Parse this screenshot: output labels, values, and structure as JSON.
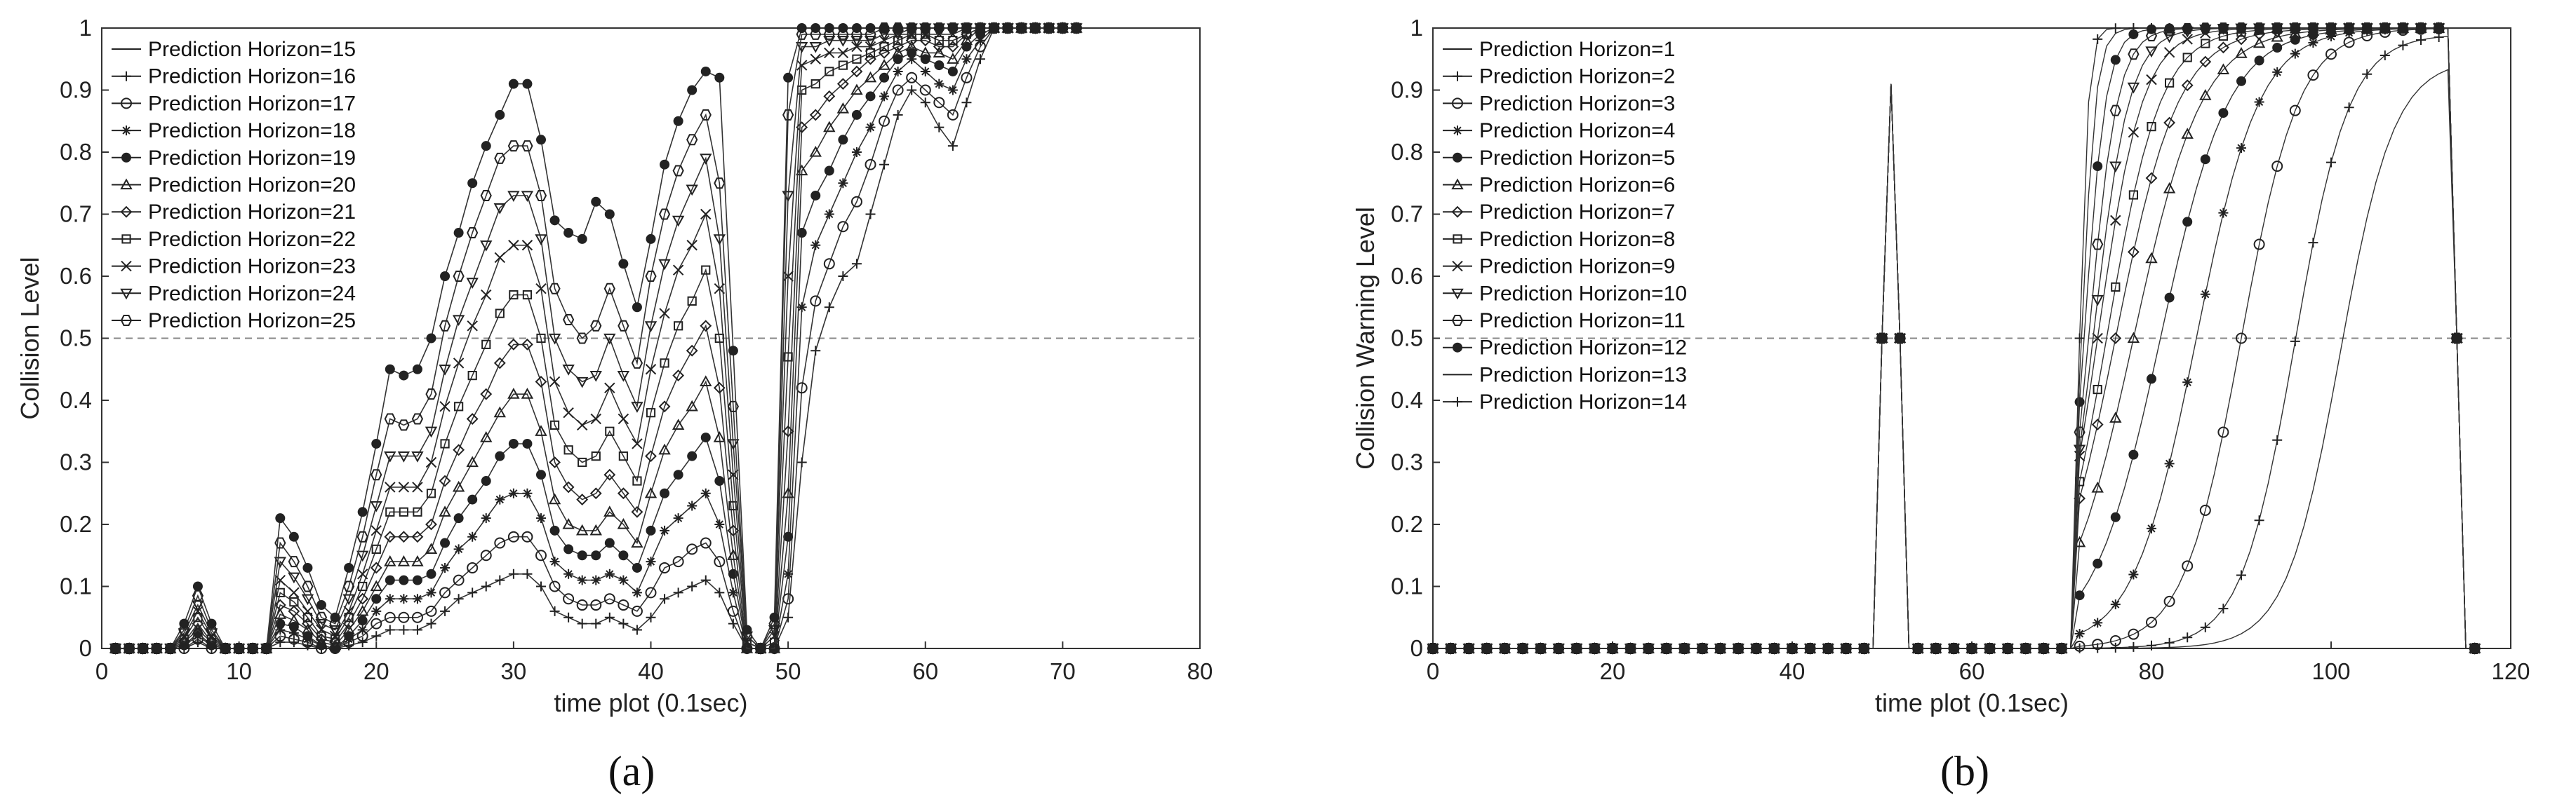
{
  "chart_data": [
    {
      "type": "line",
      "panel_label": "(a)",
      "xlabel": "time plot (0.1sec)",
      "ylabel": "Collision Level",
      "xlim": [
        0,
        80
      ],
      "ylim": [
        0,
        1
      ],
      "xticks": [
        "0",
        "10",
        "20",
        "30",
        "40",
        "50",
        "60",
        "70",
        "80"
      ],
      "yticks": [
        "0",
        "0.1",
        "0.2",
        "0.3",
        "0.4",
        "0.5",
        "0.6",
        "0.7",
        "0.8",
        "0.9",
        "1"
      ],
      "threshold": 0.5,
      "legend_position": "top-left",
      "x": [
        1,
        2,
        3,
        4,
        5,
        6,
        7,
        8,
        9,
        10,
        11,
        12,
        13,
        14,
        15,
        16,
        17,
        18,
        19,
        20,
        21,
        22,
        23,
        24,
        25,
        26,
        27,
        28,
        29,
        30,
        31,
        32,
        33,
        34,
        35,
        36,
        37,
        38,
        39,
        40,
        41,
        42,
        43,
        44,
        45,
        46,
        47,
        48,
        49,
        50,
        51,
        52,
        53,
        54,
        55,
        56,
        57,
        58,
        59,
        60,
        61,
        62,
        63,
        64,
        65,
        66,
        67,
        68,
        69,
        70,
        71
      ],
      "series": [
        {
          "name": "Prediction Horizon=15",
          "values": [
            0,
            0,
            0,
            0,
            0,
            0,
            0.01,
            0,
            0,
            0,
            0,
            0,
            0.01,
            0.01,
            0.005,
            0,
            0,
            0.005,
            0.01,
            0.02,
            0.03,
            0.03,
            0.03,
            0.04,
            0.06,
            0.08,
            0.09,
            0.1,
            0.11,
            0.12,
            0.12,
            0.1,
            0.06,
            0.05,
            0.04,
            0.04,
            0.05,
            0.04,
            0.03,
            0.05,
            0.08,
            0.09,
            0.1,
            0.11,
            0.09,
            0.04,
            0,
            0,
            0,
            0.05,
            0.3,
            0.48,
            0.55,
            0.6,
            0.62,
            0.7,
            0.78,
            0.86,
            0.9,
            0.88,
            0.84,
            0.81,
            0.88,
            0.95,
            1,
            1,
            1,
            1,
            1,
            1,
            1
          ]
        },
        {
          "name": "Prediction Horizon=16",
          "values": [
            0,
            0,
            0,
            0,
            0,
            0,
            0.015,
            0,
            0,
            0,
            0,
            0,
            0.02,
            0.015,
            0.01,
            0,
            0,
            0.01,
            0.02,
            0.04,
            0.05,
            0.05,
            0.05,
            0.06,
            0.09,
            0.11,
            0.13,
            0.15,
            0.17,
            0.18,
            0.18,
            0.15,
            0.1,
            0.08,
            0.07,
            0.07,
            0.08,
            0.07,
            0.06,
            0.09,
            0.13,
            0.14,
            0.16,
            0.17,
            0.14,
            0.06,
            0,
            0,
            0,
            0.08,
            0.42,
            0.56,
            0.62,
            0.68,
            0.72,
            0.78,
            0.85,
            0.9,
            0.92,
            0.9,
            0.88,
            0.86,
            0.92,
            0.97,
            1,
            1,
            1,
            1,
            1,
            1,
            1
          ]
        },
        {
          "name": "Prediction Horizon=17",
          "values": [
            0,
            0,
            0,
            0,
            0,
            0.005,
            0.02,
            0.005,
            0,
            0,
            0,
            0,
            0.03,
            0.025,
            0.015,
            0.005,
            0,
            0.015,
            0.03,
            0.06,
            0.08,
            0.08,
            0.08,
            0.09,
            0.13,
            0.16,
            0.18,
            0.21,
            0.24,
            0.25,
            0.25,
            0.21,
            0.14,
            0.12,
            0.11,
            0.11,
            0.12,
            0.11,
            0.09,
            0.14,
            0.19,
            0.21,
            0.23,
            0.25,
            0.2,
            0.09,
            0,
            0,
            0,
            0.12,
            0.55,
            0.65,
            0.7,
            0.75,
            0.8,
            0.84,
            0.89,
            0.93,
            0.95,
            0.93,
            0.91,
            0.9,
            0.95,
            0.98,
            1,
            1,
            1,
            1,
            1,
            1,
            1
          ]
        },
        {
          "name": "Prediction Horizon=18",
          "values": [
            0,
            0,
            0,
            0,
            0,
            0.005,
            0.025,
            0.005,
            0,
            0,
            0,
            0,
            0.04,
            0.035,
            0.02,
            0.005,
            0,
            0.02,
            0.045,
            0.08,
            0.11,
            0.11,
            0.11,
            0.12,
            0.17,
            0.21,
            0.24,
            0.27,
            0.31,
            0.33,
            0.33,
            0.28,
            0.19,
            0.16,
            0.15,
            0.15,
            0.17,
            0.15,
            0.13,
            0.19,
            0.25,
            0.28,
            0.31,
            0.34,
            0.27,
            0.12,
            0,
            0,
            0,
            0.18,
            0.67,
            0.73,
            0.77,
            0.82,
            0.86,
            0.89,
            0.92,
            0.95,
            0.96,
            0.95,
            0.94,
            0.93,
            0.97,
            0.99,
            1,
            1,
            1,
            1,
            1,
            1,
            1
          ]
        },
        {
          "name": "Prediction Horizon=19",
          "values": [
            0,
            0,
            0,
            0,
            0,
            0.01,
            0.03,
            0.01,
            0,
            0,
            0,
            0,
            0.055,
            0.045,
            0.03,
            0.01,
            0.005,
            0.03,
            0.06,
            0.1,
            0.14,
            0.14,
            0.14,
            0.16,
            0.22,
            0.26,
            0.3,
            0.34,
            0.38,
            0.41,
            0.41,
            0.35,
            0.24,
            0.2,
            0.19,
            0.19,
            0.22,
            0.2,
            0.17,
            0.25,
            0.32,
            0.36,
            0.39,
            0.43,
            0.34,
            0.15,
            0,
            0,
            0,
            0.25,
            0.77,
            0.8,
            0.84,
            0.87,
            0.9,
            0.92,
            0.94,
            0.96,
            0.97,
            0.96,
            0.96,
            0.95,
            0.98,
            1,
            1,
            1,
            1,
            1,
            1,
            1,
            1
          ]
        },
        {
          "name": "Prediction Horizon=20",
          "values": [
            0,
            0,
            0,
            0,
            0,
            0.01,
            0.04,
            0.01,
            0,
            0,
            0,
            0,
            0.07,
            0.06,
            0.04,
            0.015,
            0.01,
            0.04,
            0.08,
            0.13,
            0.18,
            0.18,
            0.18,
            0.2,
            0.27,
            0.32,
            0.37,
            0.41,
            0.46,
            0.49,
            0.49,
            0.43,
            0.3,
            0.26,
            0.24,
            0.25,
            0.28,
            0.25,
            0.22,
            0.31,
            0.39,
            0.44,
            0.48,
            0.52,
            0.42,
            0.19,
            0,
            0,
            0,
            0.35,
            0.84,
            0.86,
            0.89,
            0.91,
            0.93,
            0.95,
            0.96,
            0.97,
            0.98,
            0.98,
            0.97,
            0.97,
            0.99,
            1,
            1,
            1,
            1,
            1,
            1,
            1,
            1
          ]
        },
        {
          "name": "Prediction Horizon=21",
          "values": [
            0,
            0,
            0,
            0,
            0,
            0.015,
            0.05,
            0.015,
            0,
            0,
            0,
            0,
            0.09,
            0.075,
            0.05,
            0.02,
            0.015,
            0.05,
            0.1,
            0.16,
            0.22,
            0.22,
            0.22,
            0.25,
            0.33,
            0.39,
            0.44,
            0.49,
            0.54,
            0.57,
            0.57,
            0.5,
            0.36,
            0.32,
            0.3,
            0.31,
            0.35,
            0.31,
            0.27,
            0.38,
            0.46,
            0.52,
            0.56,
            0.61,
            0.5,
            0.23,
            0.01,
            0,
            0.01,
            0.47,
            0.9,
            0.91,
            0.93,
            0.94,
            0.95,
            0.96,
            0.97,
            0.98,
            0.99,
            0.99,
            0.98,
            0.98,
            0.99,
            1,
            1,
            1,
            1,
            1,
            1,
            1,
            1
          ]
        },
        {
          "name": "Prediction Horizon=22",
          "values": [
            0,
            0,
            0,
            0,
            0,
            0.02,
            0.06,
            0.02,
            0,
            0,
            0,
            0,
            0.11,
            0.09,
            0.06,
            0.03,
            0.02,
            0.06,
            0.12,
            0.19,
            0.26,
            0.26,
            0.26,
            0.3,
            0.39,
            0.46,
            0.52,
            0.57,
            0.63,
            0.65,
            0.65,
            0.58,
            0.43,
            0.38,
            0.36,
            0.37,
            0.42,
            0.37,
            0.33,
            0.45,
            0.54,
            0.61,
            0.65,
            0.7,
            0.58,
            0.28,
            0.01,
            0,
            0.02,
            0.6,
            0.94,
            0.95,
            0.96,
            0.96,
            0.97,
            0.97,
            0.98,
            0.99,
            0.99,
            0.99,
            0.99,
            0.99,
            1,
            1,
            1,
            1,
            1,
            1,
            1,
            1,
            1
          ]
        },
        {
          "name": "Prediction Horizon=23",
          "values": [
            0,
            0,
            0,
            0,
            0,
            0.025,
            0.07,
            0.025,
            0,
            0,
            0,
            0,
            0.14,
            0.115,
            0.08,
            0.04,
            0.03,
            0.08,
            0.15,
            0.23,
            0.31,
            0.31,
            0.31,
            0.35,
            0.45,
            0.53,
            0.59,
            0.65,
            0.71,
            0.73,
            0.73,
            0.66,
            0.5,
            0.45,
            0.43,
            0.44,
            0.5,
            0.44,
            0.39,
            0.52,
            0.62,
            0.69,
            0.74,
            0.79,
            0.66,
            0.33,
            0.02,
            0,
            0.03,
            0.73,
            0.97,
            0.97,
            0.98,
            0.98,
            0.98,
            0.98,
            0.99,
            0.99,
            1,
            1,
            1,
            1,
            1,
            1,
            1,
            1,
            1,
            1,
            1,
            1,
            1
          ]
        },
        {
          "name": "Prediction Horizon=24",
          "values": [
            0,
            0,
            0,
            0,
            0,
            0.03,
            0.085,
            0.03,
            0,
            0,
            0,
            0,
            0.17,
            0.14,
            0.1,
            0.05,
            0.04,
            0.1,
            0.18,
            0.28,
            0.37,
            0.36,
            0.37,
            0.41,
            0.52,
            0.6,
            0.67,
            0.73,
            0.79,
            0.81,
            0.81,
            0.73,
            0.58,
            0.53,
            0.5,
            0.52,
            0.58,
            0.52,
            0.46,
            0.6,
            0.7,
            0.77,
            0.82,
            0.86,
            0.75,
            0.39,
            0.02,
            0,
            0.04,
            0.86,
            0.99,
            0.99,
            0.99,
            0.99,
            0.99,
            0.99,
            1,
            1,
            1,
            1,
            1,
            1,
            1,
            1,
            1,
            1,
            1,
            1,
            1,
            1,
            1
          ]
        },
        {
          "name": "Prediction Horizon=25",
          "values": [
            0,
            0,
            0,
            0,
            0,
            0.04,
            0.1,
            0.04,
            0,
            0,
            0,
            0,
            0.21,
            0.18,
            0.13,
            0.07,
            0.05,
            0.13,
            0.22,
            0.33,
            0.45,
            0.44,
            0.45,
            0.5,
            0.6,
            0.67,
            0.75,
            0.81,
            0.86,
            0.91,
            0.91,
            0.82,
            0.69,
            0.67,
            0.66,
            0.72,
            0.7,
            0.62,
            0.55,
            0.66,
            0.78,
            0.85,
            0.9,
            0.93,
            0.92,
            0.48,
            0.03,
            0,
            0.05,
            0.92,
            1,
            1,
            1,
            1,
            1,
            1,
            1,
            1,
            1,
            1,
            1,
            1,
            1,
            1,
            1,
            1,
            1,
            1,
            1,
            1,
            1
          ]
        }
      ]
    },
    {
      "type": "line",
      "panel_label": "(b)",
      "xlabel": "time plot (0.1sec)",
      "ylabel": "Collision Warning Level",
      "xlim": [
        0,
        120
      ],
      "ylim": [
        0,
        1
      ],
      "xticks": [
        "0",
        "20",
        "40",
        "60",
        "80",
        "100",
        "120"
      ],
      "yticks": [
        "0",
        "0.1",
        "0.2",
        "0.3",
        "0.4",
        "0.5",
        "0.6",
        "0.7",
        "0.8",
        "0.9",
        "1"
      ],
      "threshold": 0.5,
      "legend_position": "top-left",
      "spike_x": [
        49,
        50,
        51,
        52,
        53
      ],
      "spike_values": [
        0,
        0.5,
        0.91,
        0.5,
        0
      ],
      "drop_x": [
        113,
        114,
        115
      ],
      "drop_values": [
        0.98,
        0.5,
        0
      ],
      "series": [
        {
          "name": "Prediction Horizon=1",
          "rise_start": 72,
          "rise_mid": 101,
          "rise_width": 3.0,
          "peak": 0.95
        },
        {
          "name": "Prediction Horizon=2",
          "rise_start": 72,
          "rise_mid": 96,
          "rise_width": 3.0,
          "peak": 0.99
        },
        {
          "name": "Prediction Horizon=3",
          "rise_start": 72,
          "rise_mid": 90,
          "rise_width": 3.2,
          "peak": 1
        },
        {
          "name": "Prediction Horizon=4",
          "rise_start": 72,
          "rise_mid": 85,
          "rise_width": 3.5,
          "peak": 1
        },
        {
          "name": "Prediction Horizon=5",
          "rise_start": 72,
          "rise_mid": 81,
          "rise_width": 3.8,
          "peak": 1
        },
        {
          "name": "Prediction Horizon=6",
          "rise_start": 72,
          "rise_mid": 78,
          "rise_width": 3.8,
          "peak": 1
        },
        {
          "name": "Prediction Horizon=7",
          "rise_start": 72,
          "rise_mid": 76,
          "rise_width": 3.5,
          "peak": 1
        },
        {
          "name": "Prediction Horizon=8",
          "rise_start": 72,
          "rise_mid": 75,
          "rise_width": 3.0,
          "peak": 1
        },
        {
          "name": "Prediction Horizon=9",
          "rise_start": 72,
          "rise_mid": 74,
          "rise_width": 2.5,
          "peak": 1
        },
        {
          "name": "Prediction Horizon=10",
          "rise_start": 72,
          "rise_mid": 73.5,
          "rise_width": 2.0,
          "peak": 1
        },
        {
          "name": "Prediction Horizon=11",
          "rise_start": 72,
          "rise_mid": 73,
          "rise_width": 1.6,
          "peak": 1
        },
        {
          "name": "Prediction Horizon=12",
          "rise_start": 72,
          "rise_mid": 72.5,
          "rise_width": 1.2,
          "peak": 1
        },
        {
          "name": "Prediction Horizon=13",
          "rise_start": 72,
          "rise_mid": 72.2,
          "rise_width": 0.8,
          "peak": 1
        },
        {
          "name": "Prediction Horizon=14",
          "rise_start": 72,
          "rise_mid": 72,
          "rise_width": 0.5,
          "peak": 1
        }
      ]
    }
  ]
}
